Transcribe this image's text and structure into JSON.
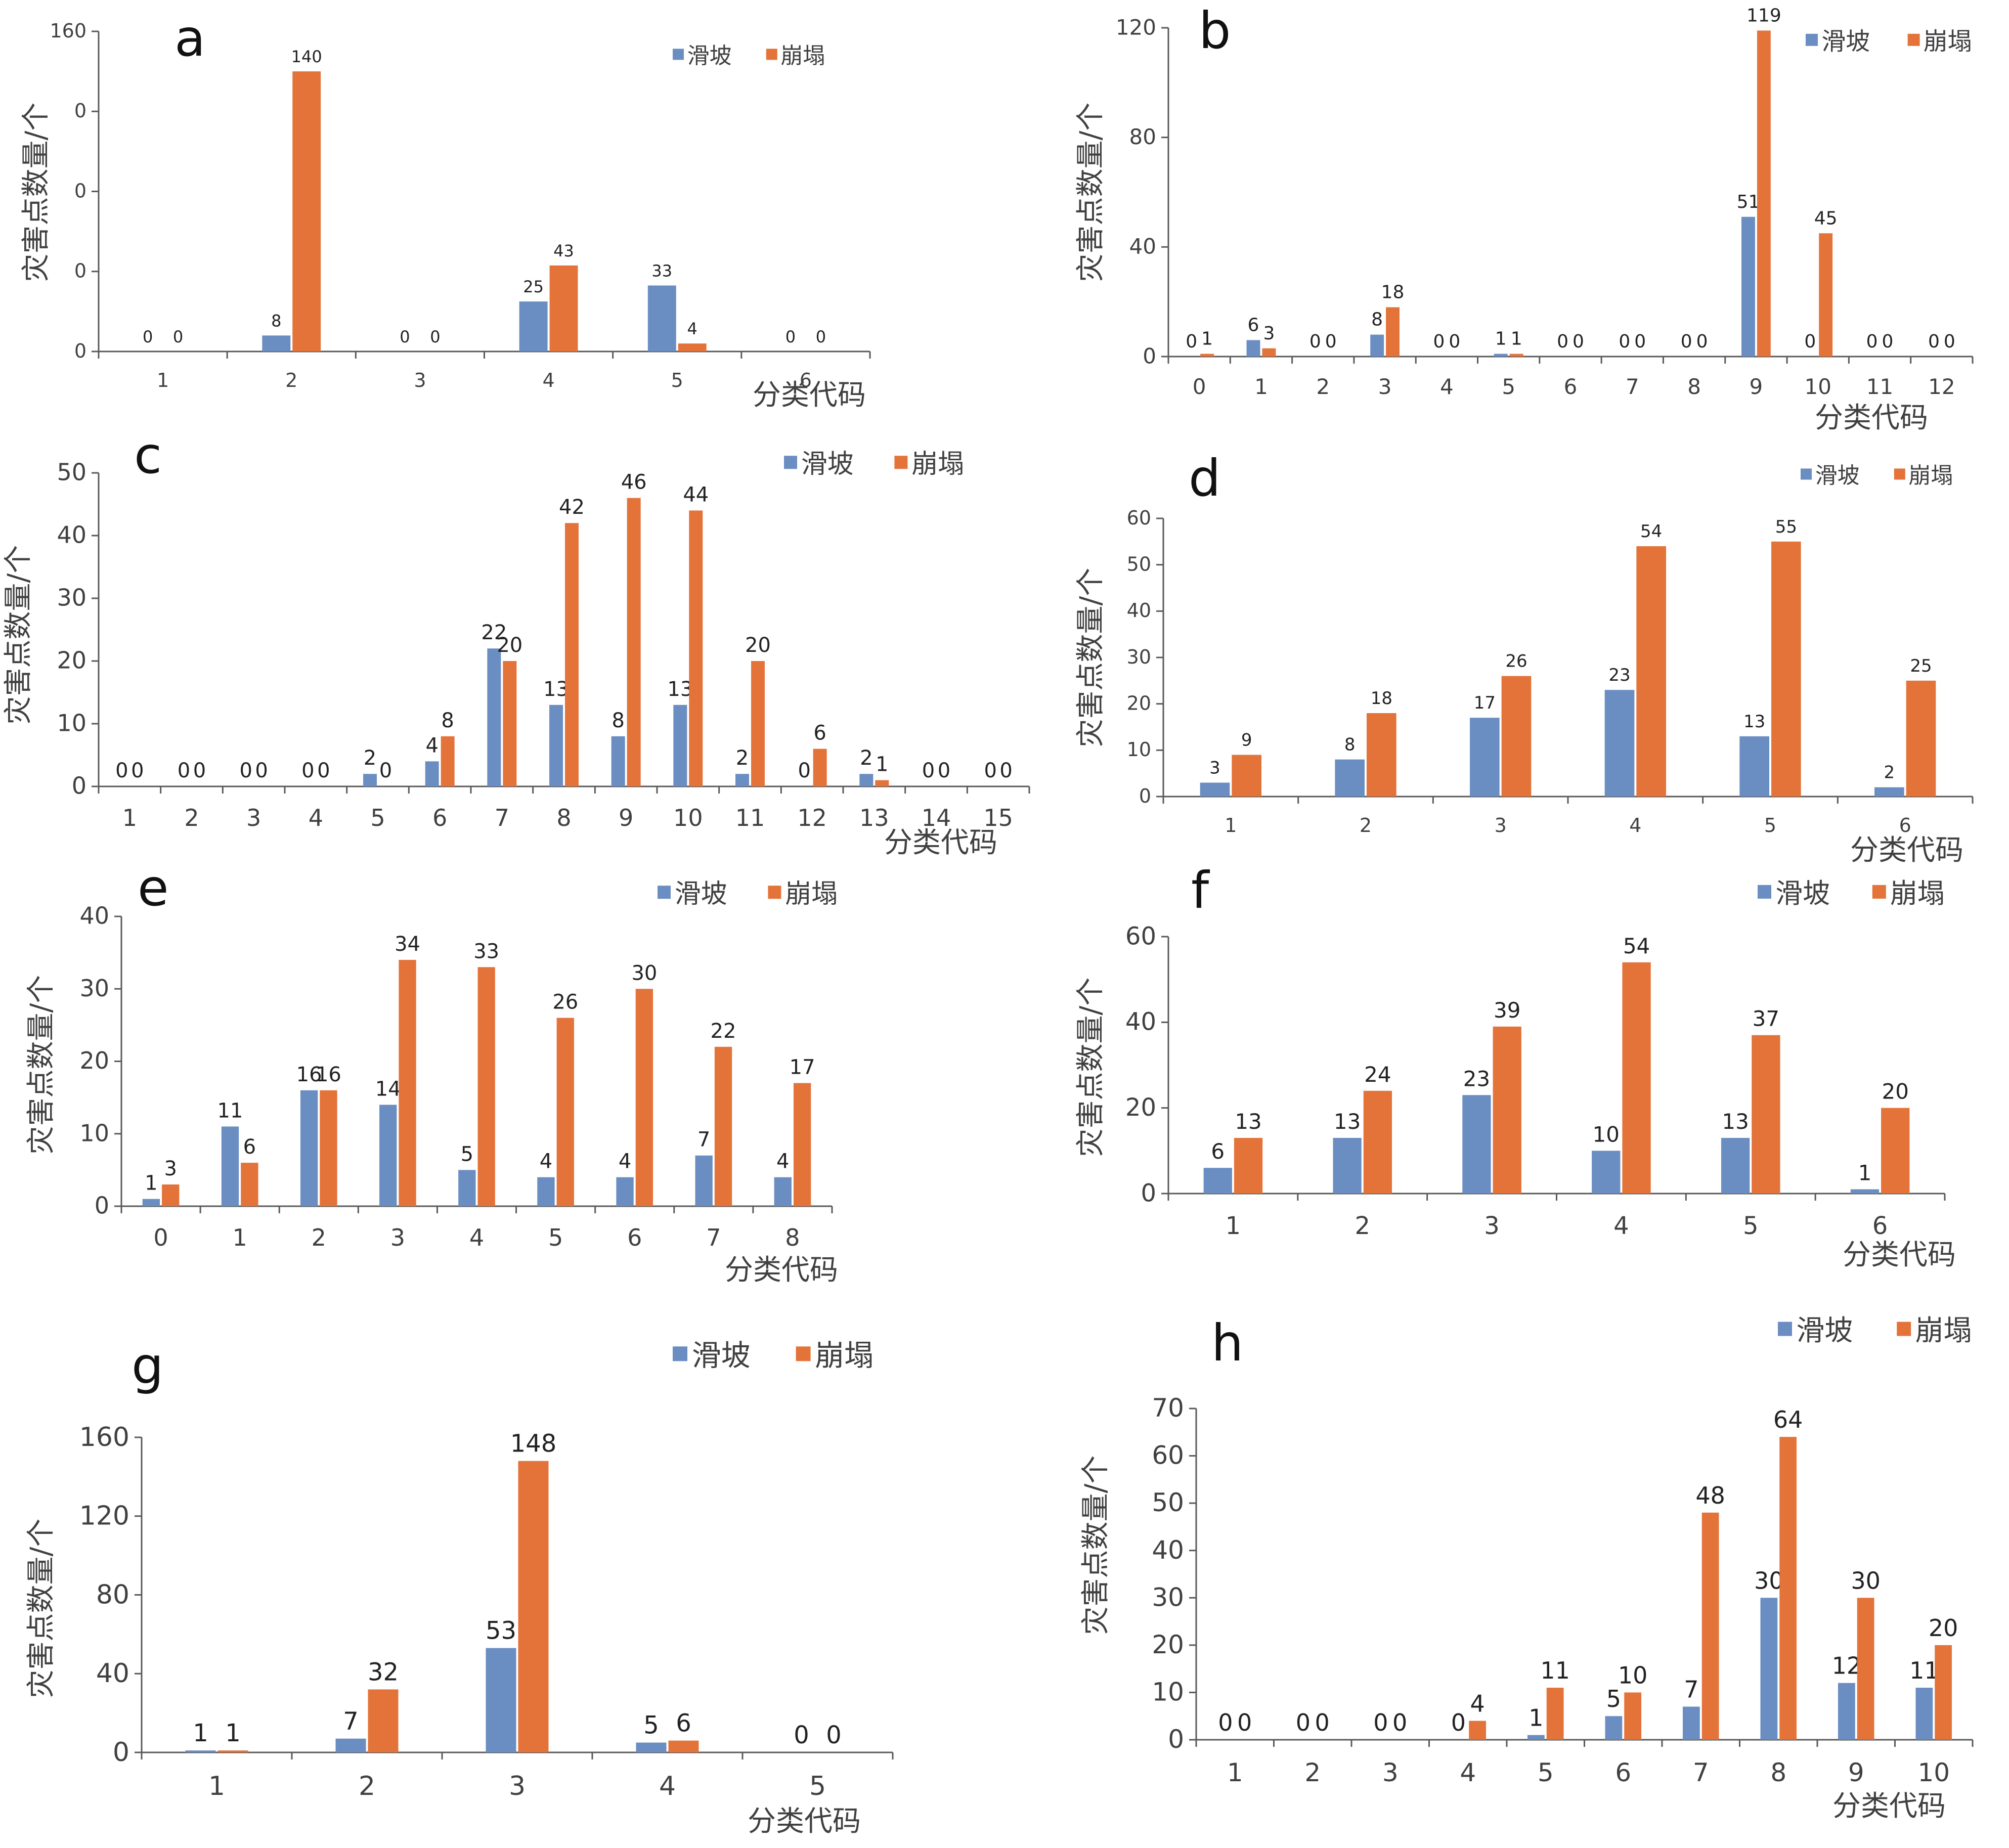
{
  "colors": {
    "landslide": "#6a8dc2",
    "collapse": "#e4733a",
    "axis": "#595959",
    "text": "#404040"
  },
  "legend_labels": [
    "滑坡",
    "崩塌"
  ],
  "chart_data": [
    {
      "panel": "a",
      "type": "bar",
      "categories": [
        "1",
        "2",
        "3",
        "4",
        "5",
        "6"
      ],
      "series": [
        {
          "name": "滑坡",
          "values": [
            0,
            8,
            0,
            25,
            33,
            0
          ]
        },
        {
          "name": "崩塌",
          "values": [
            0,
            140,
            0,
            43,
            4,
            0
          ]
        }
      ],
      "yticks": [
        "0",
        "0",
        "0",
        "0",
        "160"
      ],
      "ylim": [
        0,
        160
      ],
      "xlabel": "分类代码",
      "ylabel": "灾害点数量/个",
      "legend_position": "top-right",
      "grid": false
    },
    {
      "panel": "b",
      "type": "bar",
      "categories": [
        "0",
        "1",
        "2",
        "3",
        "4",
        "5",
        "6",
        "7",
        "8",
        "9",
        "10",
        "11",
        "12"
      ],
      "series": [
        {
          "name": "滑坡",
          "values": [
            0,
            6,
            0,
            8,
            0,
            1,
            0,
            0,
            0,
            51,
            0,
            0,
            0
          ]
        },
        {
          "name": "崩塌",
          "values": [
            1,
            3,
            0,
            18,
            0,
            1,
            0,
            0,
            0,
            119,
            45,
            0,
            0
          ]
        }
      ],
      "yticks": [
        "0",
        "40",
        "80",
        "120"
      ],
      "ylim": [
        0,
        120
      ],
      "xlabel": "分类代码",
      "ylabel": "灾害点数量/个",
      "legend_position": "top-right",
      "grid": false
    },
    {
      "panel": "c",
      "type": "bar",
      "categories": [
        "1",
        "2",
        "3",
        "4",
        "5",
        "6",
        "7",
        "8",
        "9",
        "10",
        "11",
        "12",
        "13",
        "14",
        "15"
      ],
      "series": [
        {
          "name": "滑坡",
          "values": [
            0,
            0,
            0,
            0,
            2,
            4,
            22,
            13,
            8,
            13,
            2,
            0,
            2,
            0,
            0
          ]
        },
        {
          "name": "崩塌",
          "values": [
            0,
            0,
            0,
            0,
            0,
            8,
            20,
            42,
            46,
            44,
            20,
            6,
            1,
            0,
            0
          ]
        }
      ],
      "yticks": [
        "0",
        "10",
        "20",
        "30",
        "40",
        "50"
      ],
      "ylim": [
        0,
        50
      ],
      "xlabel": "分类代码",
      "ylabel": "灾害点数量/个",
      "legend_position": "top-right",
      "grid": false
    },
    {
      "panel": "d",
      "type": "bar",
      "categories": [
        "1",
        "2",
        "3",
        "4",
        "5",
        "6"
      ],
      "series": [
        {
          "name": "滑坡",
          "values": [
            3,
            8,
            17,
            23,
            13,
            2
          ]
        },
        {
          "name": "崩塌",
          "values": [
            9,
            18,
            26,
            54,
            55,
            25
          ]
        }
      ],
      "yticks": [
        "0",
        "10",
        "20",
        "30",
        "40",
        "50",
        "60"
      ],
      "ylim": [
        0,
        60
      ],
      "xlabel": "分类代码",
      "ylabel": "灾害点数量/个",
      "legend_position": "top-right",
      "grid": false
    },
    {
      "panel": "e",
      "type": "bar",
      "categories": [
        "0",
        "1",
        "2",
        "3",
        "4",
        "5",
        "6",
        "7",
        "8"
      ],
      "series": [
        {
          "name": "滑坡",
          "values": [
            1,
            11,
            16,
            14,
            5,
            4,
            4,
            7,
            4
          ]
        },
        {
          "name": "崩塌",
          "values": [
            3,
            6,
            16,
            34,
            33,
            26,
            30,
            22,
            17
          ]
        }
      ],
      "yticks": [
        "0",
        "10",
        "20",
        "30",
        "40"
      ],
      "ylim": [
        0,
        40
      ],
      "xlabel": "分类代码",
      "ylabel": "灾害点数量/个",
      "legend_position": "top-right",
      "grid": false
    },
    {
      "panel": "f",
      "type": "bar",
      "categories": [
        "1",
        "2",
        "3",
        "4",
        "5",
        "6"
      ],
      "series": [
        {
          "name": "滑坡",
          "values": [
            6,
            13,
            23,
            10,
            13,
            1
          ]
        },
        {
          "name": "崩塌",
          "values": [
            13,
            24,
            39,
            54,
            37,
            20
          ]
        }
      ],
      "yticks": [
        "0",
        "20",
        "40",
        "60"
      ],
      "ylim": [
        0,
        60
      ],
      "xlabel": "分类代码",
      "ylabel": "灾害点数量/个",
      "legend_position": "top-right",
      "grid": false
    },
    {
      "panel": "g",
      "type": "bar",
      "categories": [
        "1",
        "2",
        "3",
        "4",
        "5"
      ],
      "series": [
        {
          "name": "滑坡",
          "values": [
            1,
            7,
            53,
            5,
            0
          ]
        },
        {
          "name": "崩塌",
          "values": [
            1,
            32,
            148,
            6,
            0
          ]
        }
      ],
      "yticks": [
        "0",
        "40",
        "80",
        "120",
        "160"
      ],
      "ylim": [
        0,
        160
      ],
      "xlabel": "分类代码",
      "ylabel": "灾害点数量/个",
      "legend_position": "top-right",
      "grid": false
    },
    {
      "panel": "h",
      "type": "bar",
      "categories": [
        "1",
        "2",
        "3",
        "4",
        "5",
        "6",
        "7",
        "8",
        "9",
        "10"
      ],
      "series": [
        {
          "name": "滑坡",
          "values": [
            0,
            0,
            0,
            0,
            1,
            5,
            7,
            30,
            12,
            11
          ]
        },
        {
          "name": "崩塌",
          "values": [
            0,
            0,
            0,
            4,
            11,
            10,
            48,
            64,
            30,
            20
          ]
        }
      ],
      "yticks": [
        "0",
        "10",
        "20",
        "30",
        "40",
        "50",
        "60",
        "70"
      ],
      "ylim": [
        0,
        70
      ],
      "xlabel": "分类代码",
      "ylabel": "灾害点数量/个",
      "legend_position": "top-right",
      "grid": false
    }
  ]
}
